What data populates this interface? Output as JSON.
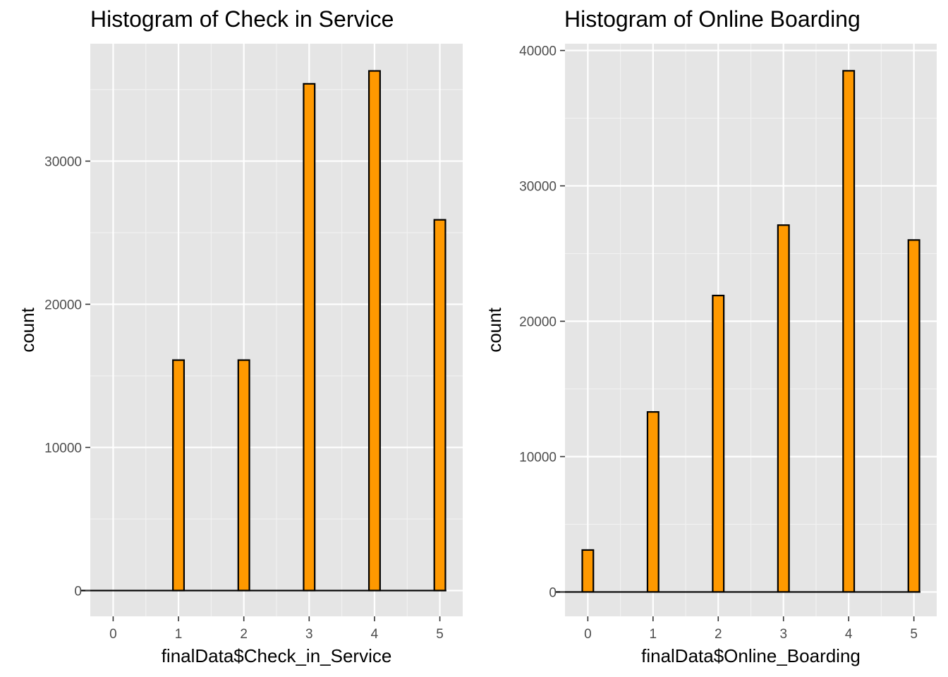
{
  "chart_data": [
    {
      "type": "bar",
      "title": "Histogram of Check in Service",
      "xlabel": "finalData$Check_in_Service",
      "ylabel": "count",
      "x_ticks": [
        "0",
        "1",
        "2",
        "3",
        "4",
        "5"
      ],
      "y_ticks": [
        "0",
        "10000",
        "20000",
        "30000"
      ],
      "categories": [
        0,
        1,
        2,
        3,
        4,
        5
      ],
      "values": [
        0,
        16100,
        16100,
        35400,
        36300,
        25900
      ],
      "xlim": [
        -0.35,
        5.35
      ],
      "ylim": [
        -1800,
        38200
      ],
      "grid": true,
      "bar_fill": "#FF9900",
      "bar_stroke": "#000000",
      "panel_background": "#E5E5E5"
    },
    {
      "type": "bar",
      "title": "Histogram of Online Boarding",
      "xlabel": "finalData$Online_Boarding",
      "ylabel": "count",
      "x_ticks": [
        "0",
        "1",
        "2",
        "3",
        "4",
        "5"
      ],
      "y_ticks": [
        "0",
        "10000",
        "20000",
        "30000",
        "40000"
      ],
      "categories": [
        0,
        1,
        2,
        3,
        4,
        5
      ],
      "values": [
        3100,
        13300,
        21900,
        27100,
        38500,
        26000
      ],
      "xlim": [
        -0.35,
        5.35
      ],
      "ylim": [
        -1800,
        40500
      ],
      "grid": true,
      "bar_fill": "#FF9900",
      "bar_stroke": "#000000",
      "panel_background": "#E5E5E5"
    }
  ]
}
